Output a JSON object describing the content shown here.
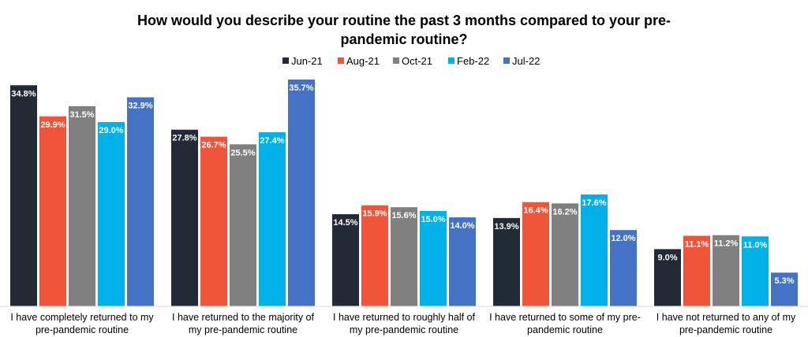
{
  "chart_data": {
    "type": "bar",
    "title_lines": [
      "How would you describe your routine the past 3 months compared to your pre-",
      "pandemic routine?"
    ],
    "categories": [
      [
        "I have completely returned to my",
        "pre-pandemic routine"
      ],
      [
        "I have returned to the majority of",
        "my pre-pandemic routine"
      ],
      [
        "I have returned to roughly half of",
        "my pre-pandemic routine"
      ],
      [
        "I have returned to some of my pre-",
        "pandemic routine"
      ],
      [
        "I have not returned to any of my",
        "pre-pandemic routine"
      ]
    ],
    "series": [
      {
        "name": "Jun-21",
        "color": "#222a35",
        "values": [
          34.8,
          27.8,
          14.5,
          13.9,
          9.0
        ],
        "labels": [
          "34.8%",
          "27.8%",
          "14.5%",
          "13.9%",
          "9.0%"
        ]
      },
      {
        "name": "Aug-21",
        "color": "#f0553a",
        "values": [
          29.9,
          26.7,
          15.9,
          16.4,
          11.1
        ],
        "labels": [
          "29.9%",
          "26.7%",
          "15.9%",
          "16.4%",
          "11.1%"
        ]
      },
      {
        "name": "Oct-21",
        "color": "#808080",
        "values": [
          31.5,
          25.5,
          15.6,
          16.2,
          11.2
        ],
        "labels": [
          "31.5%",
          "25.5%",
          "15.6%",
          "16.2%",
          "11.2%"
        ]
      },
      {
        "name": "Feb-22",
        "color": "#00b0e8",
        "values": [
          29.0,
          27.4,
          15.0,
          17.6,
          11.0
        ],
        "labels": [
          "29.0%",
          "27.4%",
          "15.0%",
          "17.6%",
          "11.0%"
        ]
      },
      {
        "name": "Jul-22",
        "color": "#4472c4",
        "values": [
          32.9,
          35.7,
          14.0,
          12.0,
          5.3
        ],
        "labels": [
          "32.9%",
          "35.7%",
          "14.0%",
          "12.0%",
          "5.3%"
        ]
      }
    ],
    "ylim": [
      0,
      35.7
    ],
    "legend": "top-center",
    "grid": false,
    "data_label_color": "#ffffff"
  }
}
